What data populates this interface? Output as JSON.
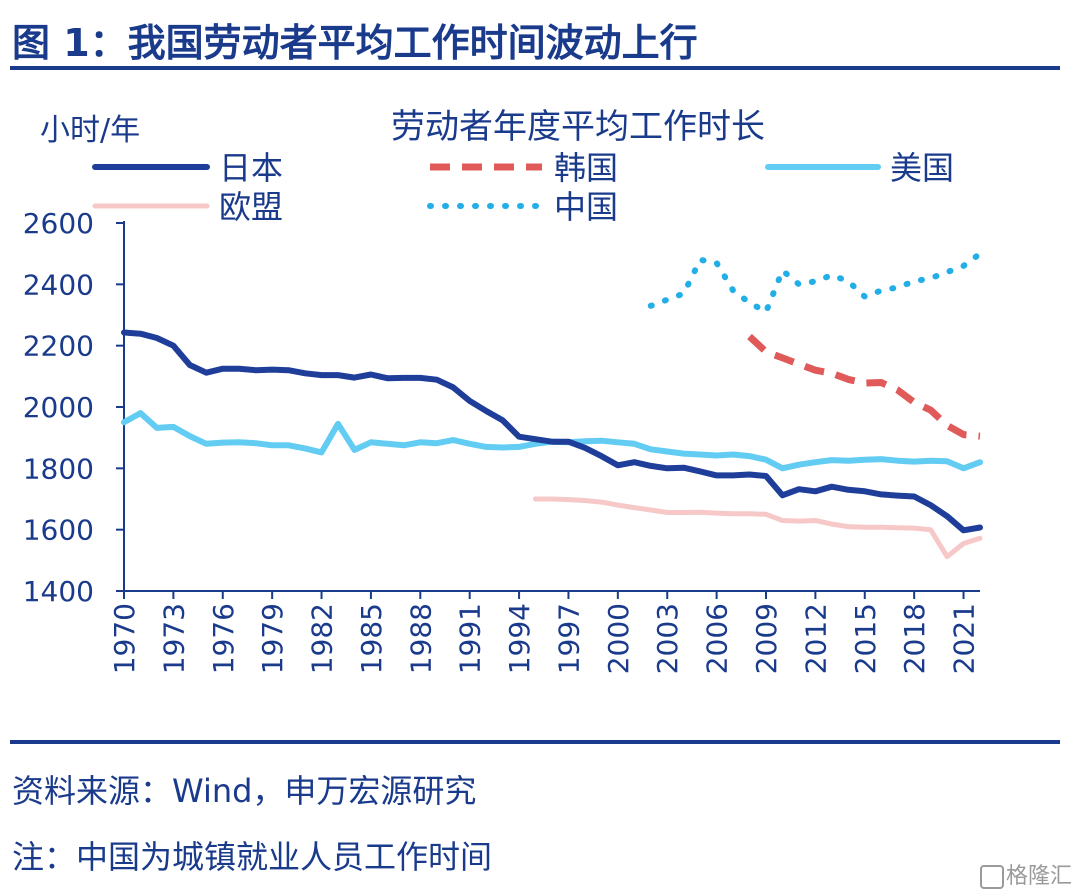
{
  "figure": {
    "title": "图 1：我国劳动者平均工作时间波动上行",
    "source": "资料来源：Wind，申万宏源研究",
    "note": "注：中国为城镇就业人员工作时间",
    "watermark": "格隆汇"
  },
  "chart_data": {
    "type": "line",
    "title": "劳动者年度平均工作时长",
    "ylabel": "小时/年",
    "xlabel": "",
    "ylim": [
      1400,
      2600
    ],
    "yticks": [
      "2600",
      "2400",
      "2200",
      "2000",
      "1800",
      "1600",
      "1400"
    ],
    "xlim": [
      1970,
      2022
    ],
    "xticks": [
      "1970",
      "1973",
      "1976",
      "1979",
      "1982",
      "1985",
      "1988",
      "1991",
      "1994",
      "1997",
      "2000",
      "2003",
      "2006",
      "2009",
      "2012",
      "2015",
      "2018",
      "2021"
    ],
    "grid": false,
    "legend_position": "top",
    "series": [
      {
        "name": "日本",
        "style": "solid",
        "color": "#1f3e99",
        "x": [
          1970,
          1971,
          1972,
          1973,
          1974,
          1975,
          1976,
          1977,
          1978,
          1979,
          1980,
          1981,
          1982,
          1983,
          1984,
          1985,
          1986,
          1987,
          1988,
          1989,
          1990,
          1991,
          1992,
          1993,
          1994,
          1995,
          1996,
          1997,
          1998,
          1999,
          2000,
          2001,
          2002,
          2003,
          2004,
          2005,
          2006,
          2007,
          2008,
          2009,
          2010,
          2011,
          2012,
          2013,
          2014,
          2015,
          2016,
          2017,
          2018,
          2019,
          2020,
          2021,
          2022
        ],
        "y": [
          2243,
          2239,
          2225,
          2200,
          2137,
          2112,
          2125,
          2125,
          2120,
          2122,
          2120,
          2110,
          2104,
          2104,
          2096,
          2106,
          2094,
          2095,
          2095,
          2089,
          2064,
          2020,
          1987,
          1957,
          1903,
          1895,
          1887,
          1887,
          1867,
          1840,
          1810,
          1820,
          1808,
          1800,
          1802,
          1790,
          1777,
          1777,
          1780,
          1775,
          1712,
          1732,
          1725,
          1740,
          1730,
          1725,
          1715,
          1711,
          1708,
          1680,
          1644,
          1598,
          1607
        ]
      },
      {
        "name": "韩国",
        "style": "dashed",
        "color": "#e05a5a",
        "x": [
          2008,
          2009,
          2010,
          2011,
          2012,
          2013,
          2014,
          2015,
          2016,
          2017,
          2018,
          2019,
          2020,
          2021,
          2022
        ],
        "y": [
          2230,
          2180,
          2160,
          2140,
          2120,
          2110,
          2090,
          2078,
          2080,
          2055,
          2015,
          1990,
          1940,
          1910,
          1905
        ]
      },
      {
        "name": "美国",
        "style": "solid",
        "color": "#62ccf2",
        "x": [
          1970,
          1971,
          1972,
          1973,
          1974,
          1975,
          1976,
          1977,
          1978,
          1979,
          1980,
          1981,
          1982,
          1983,
          1984,
          1985,
          1986,
          1987,
          1988,
          1989,
          1990,
          1991,
          1992,
          1993,
          1994,
          1995,
          1996,
          1997,
          1998,
          1999,
          2000,
          2001,
          2002,
          2003,
          2004,
          2005,
          2006,
          2007,
          2008,
          2009,
          2010,
          2011,
          2012,
          2013,
          2014,
          2015,
          2016,
          2017,
          2018,
          2019,
          2020,
          2021,
          2022
        ],
        "y": [
          1950,
          1980,
          1932,
          1935,
          1905,
          1880,
          1884,
          1885,
          1882,
          1875,
          1875,
          1865,
          1852,
          1945,
          1860,
          1885,
          1880,
          1875,
          1885,
          1882,
          1892,
          1880,
          1870,
          1868,
          1870,
          1880,
          1887,
          1885,
          1888,
          1890,
          1885,
          1880,
          1862,
          1855,
          1848,
          1845,
          1842,
          1845,
          1840,
          1828,
          1800,
          1812,
          1820,
          1827,
          1825,
          1828,
          1830,
          1825,
          1822,
          1825,
          1823,
          1800,
          1820
        ]
      },
      {
        "name": "欧盟",
        "style": "solid",
        "color": "#f7c8c8",
        "x": [
          1995,
          1996,
          1997,
          1998,
          1999,
          2000,
          2001,
          2002,
          2003,
          2004,
          2005,
          2006,
          2007,
          2008,
          2009,
          2010,
          2011,
          2012,
          2013,
          2014,
          2015,
          2016,
          2017,
          2018,
          2019,
          2020,
          2021,
          2022
        ],
        "y": [
          1700,
          1700,
          1698,
          1695,
          1690,
          1680,
          1672,
          1664,
          1656,
          1656,
          1657,
          1654,
          1652,
          1652,
          1650,
          1630,
          1628,
          1630,
          1618,
          1610,
          1608,
          1608,
          1606,
          1605,
          1600,
          1512,
          1555,
          1572
        ]
      },
      {
        "name": "中国",
        "style": "dotted",
        "color": "#22aee6",
        "x": [
          2002,
          2003,
          2004,
          2005,
          2006,
          2007,
          2008,
          2009,
          2010,
          2011,
          2012,
          2013,
          2014,
          2015,
          2016,
          2017,
          2018,
          2019,
          2020,
          2021,
          2022
        ],
        "y": [
          2330,
          2350,
          2370,
          2480,
          2470,
          2380,
          2340,
          2310,
          2445,
          2400,
          2410,
          2430,
          2410,
          2360,
          2380,
          2390,
          2410,
          2420,
          2440,
          2460,
          2500
        ]
      }
    ]
  }
}
